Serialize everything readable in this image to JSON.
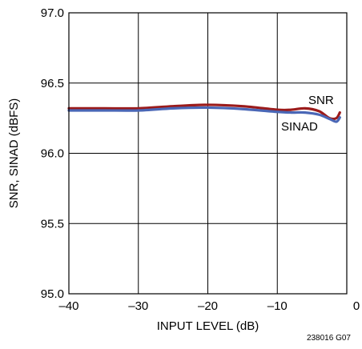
{
  "chart_data": {
    "type": "line",
    "title": "",
    "xlabel": "INPUT LEVEL (dB)",
    "ylabel": "SNR, SINAD (dBFS)",
    "xlim": [
      -40,
      0
    ],
    "ylim": [
      95.0,
      97.0
    ],
    "x_ticks": [
      -40,
      -30,
      -20,
      -10,
      0
    ],
    "x_tick_labels": [
      "–40",
      "–30",
      "–20",
      "–10",
      "0"
    ],
    "y_ticks": [
      95.0,
      95.5,
      96.0,
      96.5,
      97.0
    ],
    "y_tick_labels": [
      "95.0",
      "95.5",
      "96.0",
      "96.5",
      "97.0"
    ],
    "grid": true,
    "figure_id": "238016 G07",
    "series": [
      {
        "name": "SNR",
        "color": "#9b1b1b",
        "x": [
          -40,
          -35,
          -30,
          -25,
          -20,
          -15,
          -10,
          -8,
          -6,
          -4,
          -2.5,
          -1.5,
          -1
        ],
        "y": [
          96.32,
          96.32,
          96.32,
          96.335,
          96.345,
          96.335,
          96.31,
          96.31,
          96.32,
          96.3,
          96.25,
          96.25,
          96.29
        ]
      },
      {
        "name": "SINAD",
        "color": "#4a67b6",
        "x": [
          -40,
          -35,
          -30,
          -25,
          -20,
          -15,
          -10,
          -8,
          -6,
          -4,
          -2.5,
          -1.5,
          -1
        ],
        "y": [
          96.305,
          96.305,
          96.305,
          96.32,
          96.325,
          96.315,
          96.295,
          96.29,
          96.29,
          96.275,
          96.245,
          96.225,
          96.255
        ]
      }
    ]
  }
}
